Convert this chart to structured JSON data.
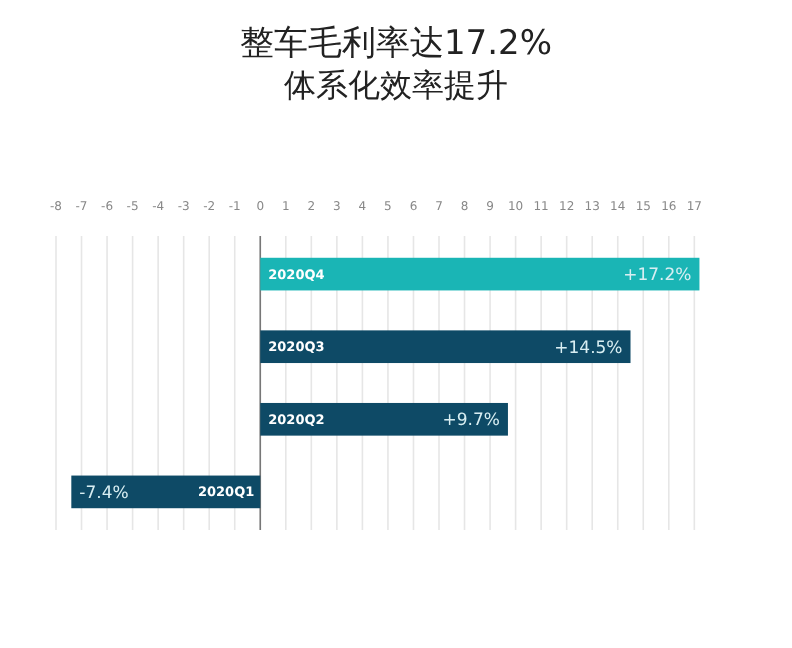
{
  "chart_data": {
    "type": "bar",
    "orientation": "horizontal",
    "title": "整车毛利率达17.2%",
    "subtitle": "体系化效率提升",
    "categories": [
      "2020Q4",
      "2020Q3",
      "2020Q2",
      "2020Q1"
    ],
    "values": [
      17.2,
      14.5,
      9.7,
      -7.4
    ],
    "colors": [
      "#1ab5b5",
      "#0e4a66",
      "#0e4a66",
      "#0e4a66"
    ],
    "value_labels": [
      "+17.2%",
      "+14.5%",
      "+9.7%",
      "-7.4%"
    ],
    "xlim": [
      -8,
      17.3
    ],
    "xticks": [
      -8,
      -7,
      -6,
      -5,
      -4,
      -3,
      -2,
      -1,
      0,
      1,
      2,
      3,
      4,
      5,
      6,
      7,
      8,
      9,
      10,
      11,
      12,
      13,
      14,
      15,
      16,
      17
    ],
    "grid": "x"
  }
}
